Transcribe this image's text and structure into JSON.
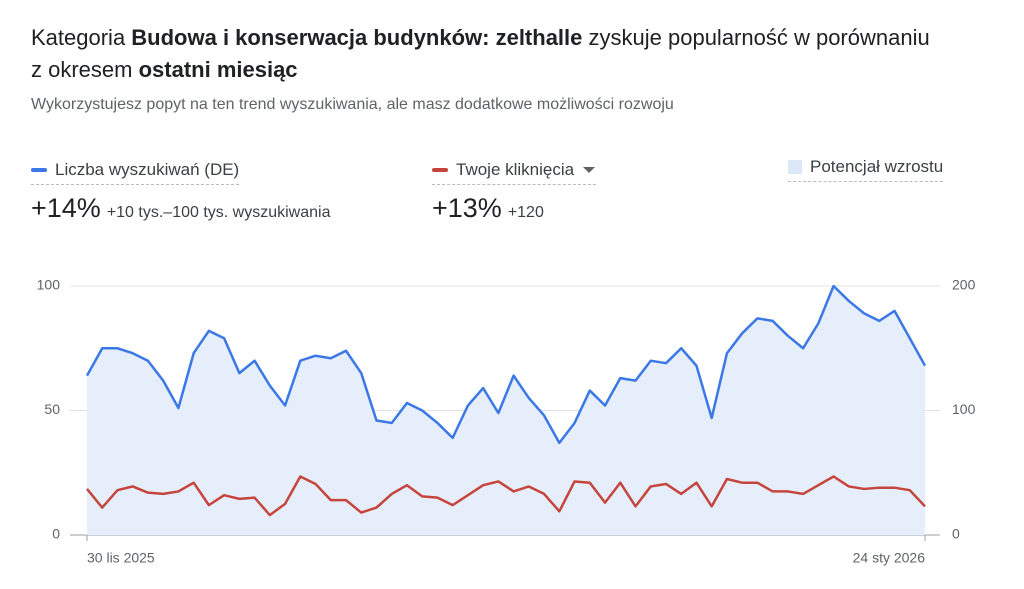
{
  "header": {
    "title_parts": [
      {
        "text": "Kategoria ",
        "bold": false
      },
      {
        "text": "Budowa i konserwacja budynków: zelthalle",
        "bold": true
      },
      {
        "text": " zyskuje popularność w porównaniu z okresem ",
        "bold": false
      },
      {
        "text": "ostatni miesiąc",
        "bold": true
      }
    ],
    "subtitle": "Wykorzystujesz popyt na ten trend wyszukiwania, ale masz dodatkowe możliwości rozwoju"
  },
  "legend": [
    {
      "label": "Liczba wyszukiwań (DE)",
      "change": "+14%",
      "detail": "+10 tys.–100 tys. wyszukiwania",
      "color": "#3b78e7"
    },
    {
      "label": "Twoje kliknięcia",
      "change": "+13%",
      "detail": "+120",
      "color": "#c5453c"
    },
    {
      "label": "Potencjał wzrostu",
      "color": "#dce7f8"
    }
  ],
  "chart_data": {
    "type": "line",
    "categories": [
      "30 lis 2025",
      null,
      null,
      null,
      null,
      null,
      null,
      null,
      null,
      null,
      null,
      null,
      null,
      null,
      null,
      null,
      null,
      null,
      null,
      null,
      null,
      null,
      null,
      null,
      null,
      null,
      null,
      null,
      null,
      null,
      null,
      null,
      null,
      null,
      null,
      null,
      null,
      null,
      null,
      null,
      null,
      null,
      null,
      null,
      null,
      null,
      null,
      null,
      null,
      null,
      null,
      null,
      null,
      null,
      null,
      "24 sty 2026"
    ],
    "series": [
      {
        "name": "Liczba wyszukiwań (DE)",
        "color": "#3b78e7",
        "area_color": "#e6eefb",
        "values": [
          64,
          75,
          75,
          73,
          70,
          62,
          51,
          73,
          82,
          79,
          65,
          70,
          60,
          52,
          70,
          72,
          71,
          74,
          65,
          46,
          45,
          53,
          50,
          45,
          39,
          52,
          59,
          49,
          64,
          55,
          48,
          37,
          45,
          58,
          52,
          63,
          62,
          70,
          69,
          75,
          68,
          47,
          73,
          81,
          87,
          86,
          80,
          75,
          85,
          100,
          94,
          89,
          86,
          90,
          79,
          68
        ]
      },
      {
        "name": "Twoje kliknięcia",
        "color": "#c5453c",
        "axis": "y2",
        "values": [
          37,
          22,
          36,
          39,
          34,
          33,
          35,
          42,
          24,
          32,
          29,
          30,
          16,
          25,
          47,
          41,
          28,
          28,
          18,
          22,
          33,
          40,
          31,
          30,
          24,
          32,
          40,
          43,
          35,
          39,
          33,
          19,
          43,
          42,
          26,
          42,
          23,
          39,
          41,
          33,
          42,
          23,
          45,
          42,
          42,
          35,
          35,
          33,
          40,
          47,
          39,
          37,
          38,
          38,
          36,
          23
        ]
      }
    ],
    "ylim": [
      0,
      100
    ],
    "yticks": [
      0,
      50,
      100
    ],
    "y2lim": [
      0,
      200
    ],
    "y2ticks": [
      0,
      100,
      200
    ],
    "grid": true
  }
}
